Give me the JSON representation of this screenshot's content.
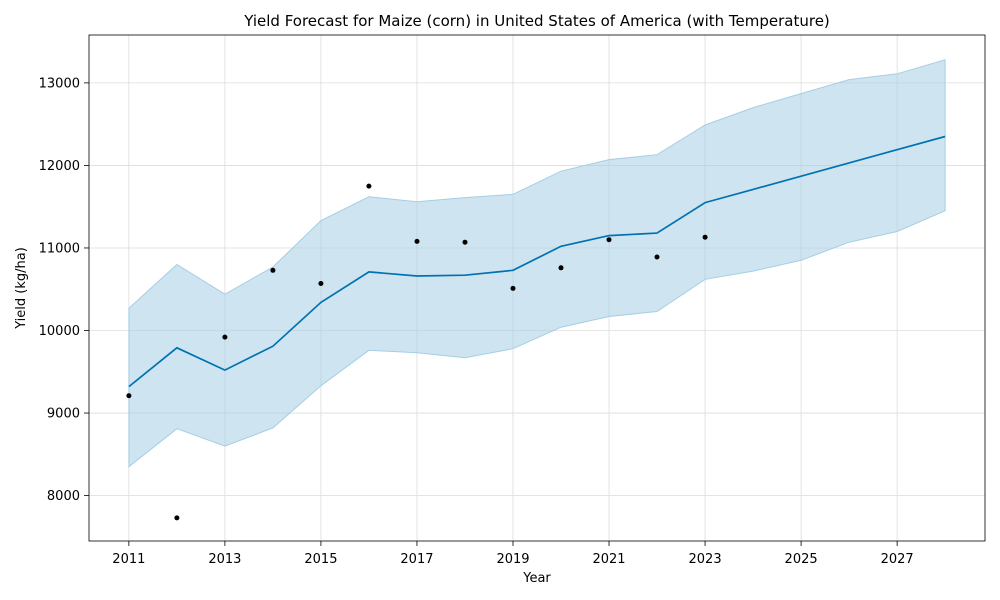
{
  "chart_data": {
    "type": "line",
    "title": "Yield Forecast for Maize (corn) in United States of America (with Temperature)",
    "xlabel": "Year",
    "ylabel": "Yield (kg/ha)",
    "xlim": [
      2010.17,
      2028.83
    ],
    "ylim": [
      7450,
      13580
    ],
    "grid": true,
    "x_ticks": [
      2011,
      2013,
      2015,
      2017,
      2019,
      2021,
      2023,
      2025,
      2027
    ],
    "y_ticks": [
      8000,
      9000,
      10000,
      11000,
      12000,
      13000
    ],
    "series": [
      {
        "kind": "band",
        "x": [
          2011,
          2012,
          2013,
          2014,
          2015,
          2016,
          2017,
          2018,
          2019,
          2020,
          2021,
          2022,
          2023,
          2024,
          2025,
          2026,
          2027,
          2028
        ],
        "lower": [
          8350,
          8810,
          8600,
          8820,
          9330,
          9760,
          9730,
          9670,
          9780,
          10040,
          10170,
          10230,
          10620,
          10720,
          10850,
          11070,
          11200,
          11450
        ],
        "upper": [
          10270,
          10800,
          10440,
          10770,
          11330,
          11620,
          11560,
          11610,
          11650,
          11930,
          12070,
          12130,
          12490,
          12700,
          12870,
          13040,
          13110,
          13280
        ],
        "color": "#a6cee3"
      },
      {
        "kind": "line",
        "x": [
          2011,
          2012,
          2013,
          2014,
          2015,
          2016,
          2017,
          2018,
          2019,
          2020,
          2021,
          2022,
          2023,
          2024,
          2025,
          2026,
          2027,
          2028
        ],
        "values": [
          9320,
          9790,
          9520,
          9810,
          10340,
          10710,
          10660,
          10670,
          10730,
          11020,
          11150,
          11180,
          11550,
          11710,
          11870,
          12030,
          12190,
          12350
        ],
        "color": "#0072b2"
      },
      {
        "kind": "scatter",
        "x": [
          2011,
          2012,
          2013,
          2014,
          2015,
          2016,
          2017,
          2018,
          2019,
          2020,
          2021,
          2022,
          2023
        ],
        "values": [
          9210,
          7730,
          9920,
          10730,
          10570,
          11750,
          11080,
          11070,
          10510,
          10760,
          11100,
          10890,
          11130
        ],
        "color": "#000000"
      }
    ]
  }
}
